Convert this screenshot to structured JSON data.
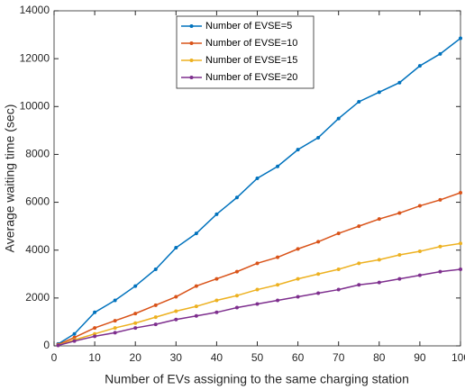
{
  "chart_data": {
    "type": "line",
    "x_label": "Number of EVs assigning to the same charging station",
    "y_label": "Average waiting time (sec)",
    "x": [
      1,
      5,
      10,
      15,
      20,
      25,
      30,
      35,
      40,
      45,
      50,
      55,
      60,
      65,
      70,
      75,
      80,
      85,
      90,
      95,
      100
    ],
    "series": [
      {
        "name": "Number of EVSE=5",
        "color": "#0072BD",
        "values": [
          80,
          500,
          1400,
          1900,
          2500,
          3200,
          4100,
          4700,
          5500,
          6200,
          7000,
          7500,
          8200,
          8700,
          9500,
          10200,
          10600,
          11000,
          11700,
          12200,
          12850
        ]
      },
      {
        "name": "Number of EVSE=10",
        "color": "#D95319",
        "values": [
          50,
          350,
          750,
          1050,
          1350,
          1700,
          2050,
          2500,
          2800,
          3100,
          3450,
          3700,
          4050,
          4350,
          4700,
          5000,
          5300,
          5550,
          5850,
          6100,
          6400
        ]
      },
      {
        "name": "Number of EVSE=15",
        "color": "#EDB120",
        "values": [
          30,
          250,
          500,
          750,
          950,
          1200,
          1450,
          1650,
          1900,
          2100,
          2350,
          2550,
          2800,
          3000,
          3200,
          3450,
          3600,
          3800,
          3950,
          4150,
          4280
        ]
      },
      {
        "name": "Number of EVSE=20",
        "color": "#7E2F8E",
        "values": [
          20,
          200,
          400,
          550,
          750,
          900,
          1100,
          1250,
          1400,
          1600,
          1750,
          1900,
          2050,
          2200,
          2350,
          2550,
          2650,
          2800,
          2950,
          3100,
          3200
        ]
      }
    ],
    "xlim": [
      0,
      100
    ],
    "xticks": [
      0,
      10,
      20,
      30,
      40,
      50,
      60,
      70,
      80,
      90,
      100
    ],
    "ylim": [
      0,
      14000
    ],
    "yticks": [
      0,
      2000,
      4000,
      6000,
      8000,
      10000,
      12000,
      14000
    ],
    "legend": "top"
  }
}
